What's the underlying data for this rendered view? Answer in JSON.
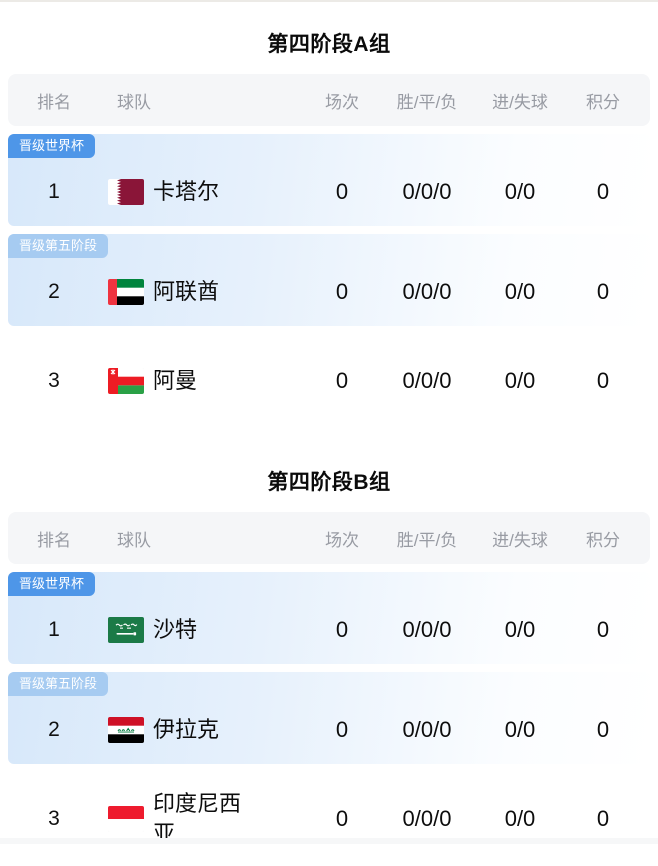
{
  "columns": {
    "rank": "排名",
    "team": "球队",
    "matches": "场次",
    "wdl": "胜/平/负",
    "goals": "进/失球",
    "points": "积分"
  },
  "colors": {
    "badge_primary": "#4e96e8",
    "badge_light": "#a6cbf1",
    "highlight_row_left": "#d7e8fa",
    "header_bg": "#f5f6f8",
    "header_text": "#989ba3"
  },
  "groups": [
    {
      "title": "第四阶段A组",
      "rows": [
        {
          "badge": "晋级世界杯",
          "badge_type": "primary",
          "highlight": true,
          "rank": "1",
          "team": "卡塔尔",
          "flag": "qatar-flag",
          "matches": "0",
          "wdl": "0/0/0",
          "goals": "0/0",
          "points": "0"
        },
        {
          "badge": "晋级第五阶段",
          "badge_type": "light",
          "highlight": true,
          "rank": "2",
          "team": "阿联酋",
          "flag": "uae-flag",
          "matches": "0",
          "wdl": "0/0/0",
          "goals": "0/0",
          "points": "0"
        },
        {
          "highlight": false,
          "rank": "3",
          "team": "阿曼",
          "flag": "oman-flag",
          "matches": "0",
          "wdl": "0/0/0",
          "goals": "0/0",
          "points": "0"
        }
      ]
    },
    {
      "title": "第四阶段B组",
      "rows": [
        {
          "badge": "晋级世界杯",
          "badge_type": "primary",
          "highlight": true,
          "rank": "1",
          "team": "沙特",
          "flag": "saudi-arabia-flag",
          "matches": "0",
          "wdl": "0/0/0",
          "goals": "0/0",
          "points": "0"
        },
        {
          "badge": "晋级第五阶段",
          "badge_type": "light",
          "highlight": true,
          "rank": "2",
          "team": "伊拉克",
          "flag": "iraq-flag",
          "matches": "0",
          "wdl": "0/0/0",
          "goals": "0/0",
          "points": "0"
        },
        {
          "highlight": false,
          "rank": "3",
          "team": "印度尼西亚",
          "flag": "indonesia-flag",
          "matches": "0",
          "wdl": "0/0/0",
          "goals": "0/0",
          "points": "0"
        }
      ]
    }
  ]
}
